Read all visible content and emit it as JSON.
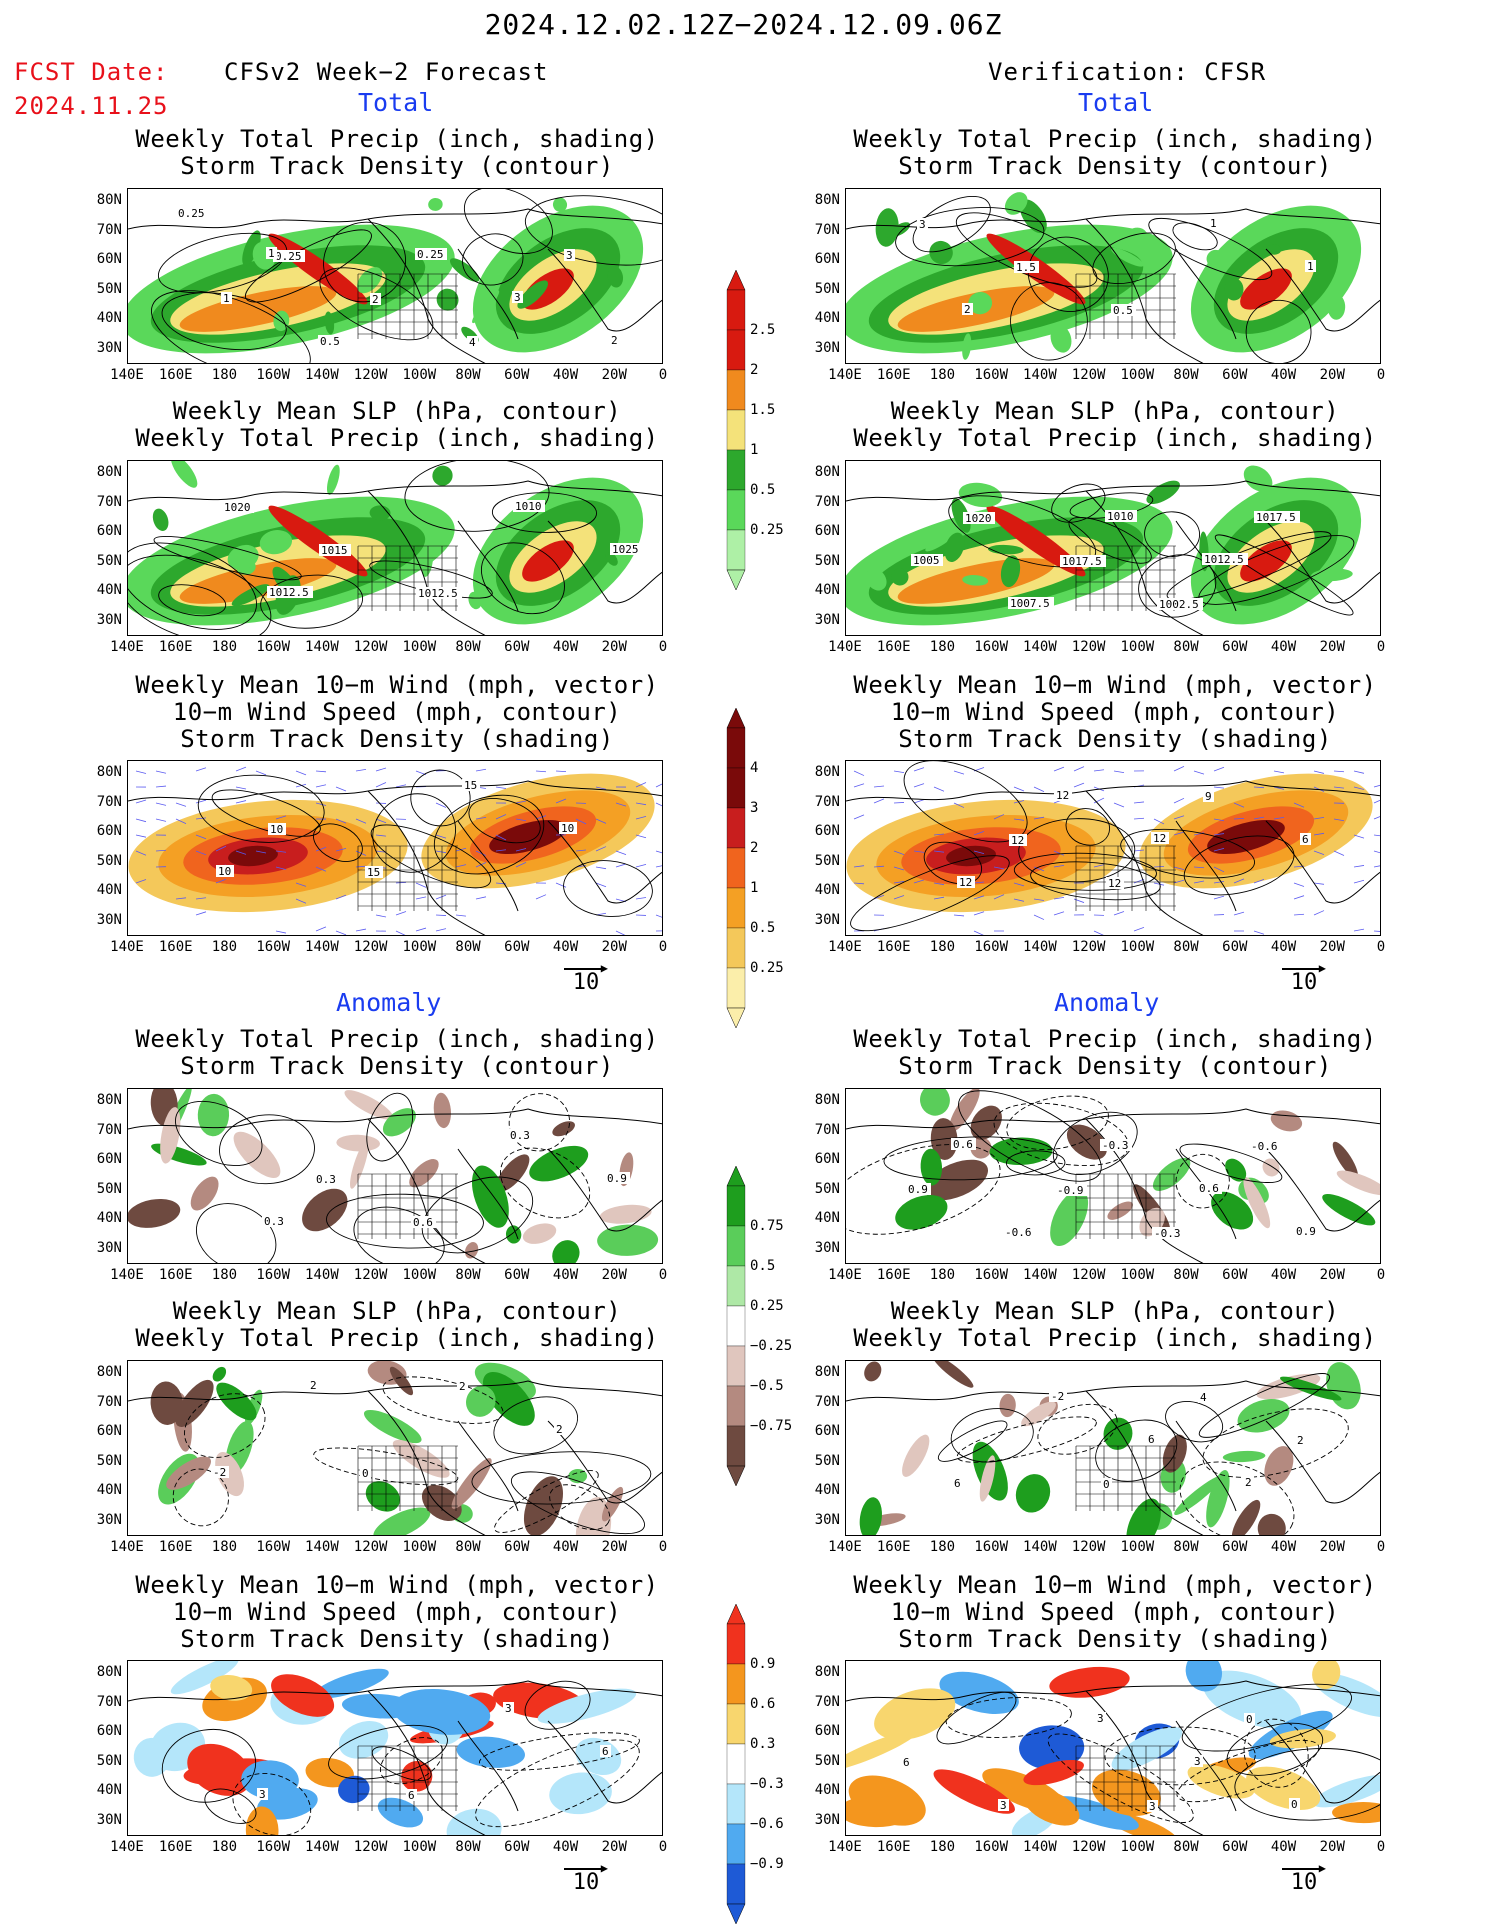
{
  "header": {
    "date_range": "2024.12.02.12Z−2024.12.09.06Z",
    "fcst_label": "FCST Date:",
    "fcst_date": "2024.11.25",
    "left_title": "CFSv2 Week−2 Forecast",
    "right_title": "Verification: CFSR"
  },
  "sections": {
    "total": "Total",
    "anomaly": "Anomaly"
  },
  "panel_titles": {
    "precip_storm": "Weekly Total Precip (inch, shading)\nStorm Track Density (contour)",
    "slp_precip": "Weekly Mean SLP (hPa, contour)\nWeekly Total Precip (inch, shading)",
    "wind_storm": "Weekly Mean 10−m Wind (mph, vector)\n10−m Wind Speed (mph, contour)\nStorm Track Density (shading)"
  },
  "axes": {
    "lat_labels": [
      "80N",
      "70N",
      "60N",
      "50N",
      "40N",
      "30N"
    ],
    "lon_labels": [
      "140E",
      "160E",
      "180",
      "160W",
      "140W",
      "120W",
      "100W",
      "80W",
      "60W",
      "40W",
      "20W",
      "0"
    ]
  },
  "vector_ref": "10",
  "colorbars": {
    "precip_total": {
      "labels": [
        "2.5",
        "2",
        "1.5",
        "1",
        "0.5",
        "0.25"
      ],
      "colors": [
        "#d81a10",
        "#f08a1e",
        "#f4e27a",
        "#2da82d",
        "#5ad85a",
        "#aef0a6"
      ]
    },
    "storm_total": {
      "labels": [
        "4",
        "3",
        "2",
        "1",
        "0.5",
        "0.25"
      ],
      "colors": [
        "#7a0a0a",
        "#c81e1e",
        "#f0641e",
        "#f4a024",
        "#f4c85a",
        "#fbeeaa"
      ]
    },
    "precip_anom": {
      "labels": [
        "0.75",
        "0.5",
        "0.25",
        "−0.25",
        "−0.5",
        "−0.75"
      ],
      "colors": [
        "#1e9e1e",
        "#5acd5a",
        "#aee8a6",
        "#ffffff",
        "#e0c6be",
        "#b48a80",
        "#6e4a40"
      ]
    },
    "storm_anom": {
      "labels": [
        "0.9",
        "0.6",
        "0.3",
        "−0.3",
        "−0.6",
        "−0.9"
      ],
      "colors": [
        "#f0321e",
        "#f4961e",
        "#f8d66e",
        "#ffffff",
        "#b4e6fa",
        "#50aaf0",
        "#1e5ad6"
      ]
    }
  },
  "contour_labels": {
    "l1": [
      "0.25",
      "0.25",
      "2",
      "4",
      "3",
      "1",
      "0.5",
      "0.25",
      "3",
      "2",
      "1"
    ],
    "r1": [
      "3",
      "1.5",
      "0.5",
      "1",
      "1",
      "2"
    ],
    "l2": [
      "1020",
      "1015",
      "1012.5",
      "1010",
      "1025",
      "1012.5"
    ],
    "r2": [
      "1020",
      "1017.5",
      "1002.5",
      "1017.5",
      "1005",
      "1007.5",
      "1010",
      "1012.5"
    ],
    "l3": [
      "10",
      "15",
      "15",
      "10",
      "10"
    ],
    "r3": [
      "12",
      "12",
      "9",
      "6",
      "12",
      "12",
      "12"
    ],
    "l4": [
      "0.3",
      "0.6",
      "0.3",
      "0.9",
      "0.3"
    ],
    "r4": [
      "-0.9",
      "-0.3",
      "-0.6",
      "0.9",
      "-0.6",
      "-0.3",
      "0.6",
      "0.9",
      "0.6"
    ],
    "l5": [
      "0",
      "2",
      "2",
      "-2",
      "2"
    ],
    "r5": [
      "0",
      "4",
      "2",
      "6",
      "-2",
      "6",
      "2"
    ],
    "l6": [
      "6",
      "3",
      "6",
      "3"
    ],
    "r6": [
      "3",
      "0",
      "6",
      "3",
      "3",
      "3",
      "0"
    ]
  }
}
